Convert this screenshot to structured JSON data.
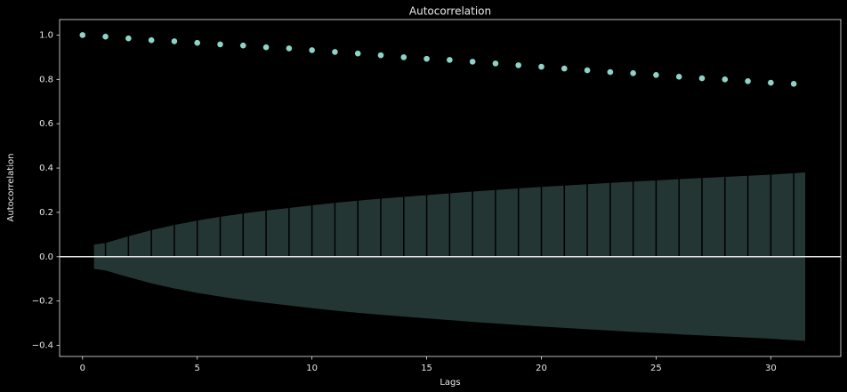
{
  "chart_data": {
    "type": "scatter",
    "title": "Autocorrelation",
    "x_label": "Lags",
    "y_label": "Autocorrelation",
    "x": [
      0,
      1,
      2,
      3,
      4,
      5,
      6,
      7,
      8,
      9,
      10,
      11,
      12,
      13,
      14,
      15,
      16,
      17,
      18,
      19,
      20,
      21,
      22,
      23,
      24,
      25,
      26,
      27,
      28,
      29,
      30,
      31
    ],
    "series": [
      {
        "color": "#8dd3c7",
        "values": [
          1.0,
          0.993,
          0.985,
          0.977,
          0.972,
          0.965,
          0.958,
          0.953,
          0.945,
          0.94,
          0.932,
          0.924,
          0.917,
          0.909,
          0.9,
          0.893,
          0.888,
          0.88,
          0.872,
          0.864,
          0.857,
          0.849,
          0.841,
          0.833,
          0.828,
          0.82,
          0.812,
          0.805,
          0.8,
          0.792,
          0.785,
          0.78
        ]
      }
    ],
    "stem_color": "#000000",
    "confidence_band": {
      "color": "#243633",
      "x": [
        0.5,
        1,
        2,
        3,
        4,
        5,
        6,
        7,
        8,
        9,
        10,
        11,
        12,
        13,
        14,
        15,
        16,
        17,
        18,
        19,
        20,
        21,
        22,
        23,
        24,
        25,
        26,
        27,
        28,
        29,
        30,
        31.5
      ],
      "upper": [
        0.055,
        0.062,
        0.092,
        0.12,
        0.143,
        0.163,
        0.18,
        0.195,
        0.208,
        0.22,
        0.232,
        0.243,
        0.253,
        0.262,
        0.27,
        0.278,
        0.286,
        0.294,
        0.301,
        0.308,
        0.315,
        0.321,
        0.327,
        0.333,
        0.339,
        0.344,
        0.35,
        0.355,
        0.36,
        0.365,
        0.37,
        0.38
      ],
      "lower": [
        -0.055,
        -0.062,
        -0.092,
        -0.12,
        -0.143,
        -0.163,
        -0.18,
        -0.195,
        -0.208,
        -0.22,
        -0.232,
        -0.243,
        -0.253,
        -0.262,
        -0.27,
        -0.278,
        -0.286,
        -0.294,
        -0.301,
        -0.308,
        -0.315,
        -0.321,
        -0.327,
        -0.333,
        -0.339,
        -0.344,
        -0.35,
        -0.355,
        -0.36,
        -0.365,
        -0.37,
        -0.38
      ]
    },
    "hline": 0,
    "hline_color": "#e8e8e8",
    "xlim": [
      -1.0,
      33.05
    ],
    "ylim": [
      -0.45,
      1.07
    ],
    "xticks": [
      0,
      5,
      10,
      15,
      20,
      25,
      30
    ],
    "yticks": [
      {
        "value": -0.4,
        "label": "−0.4"
      },
      {
        "value": -0.2,
        "label": "−0.2"
      },
      {
        "value": 0,
        "label": "0.0"
      },
      0.2,
      0.4,
      0.6,
      0.8,
      {
        "value": 1.0,
        "label": "1.0"
      }
    ],
    "grid": false
  }
}
